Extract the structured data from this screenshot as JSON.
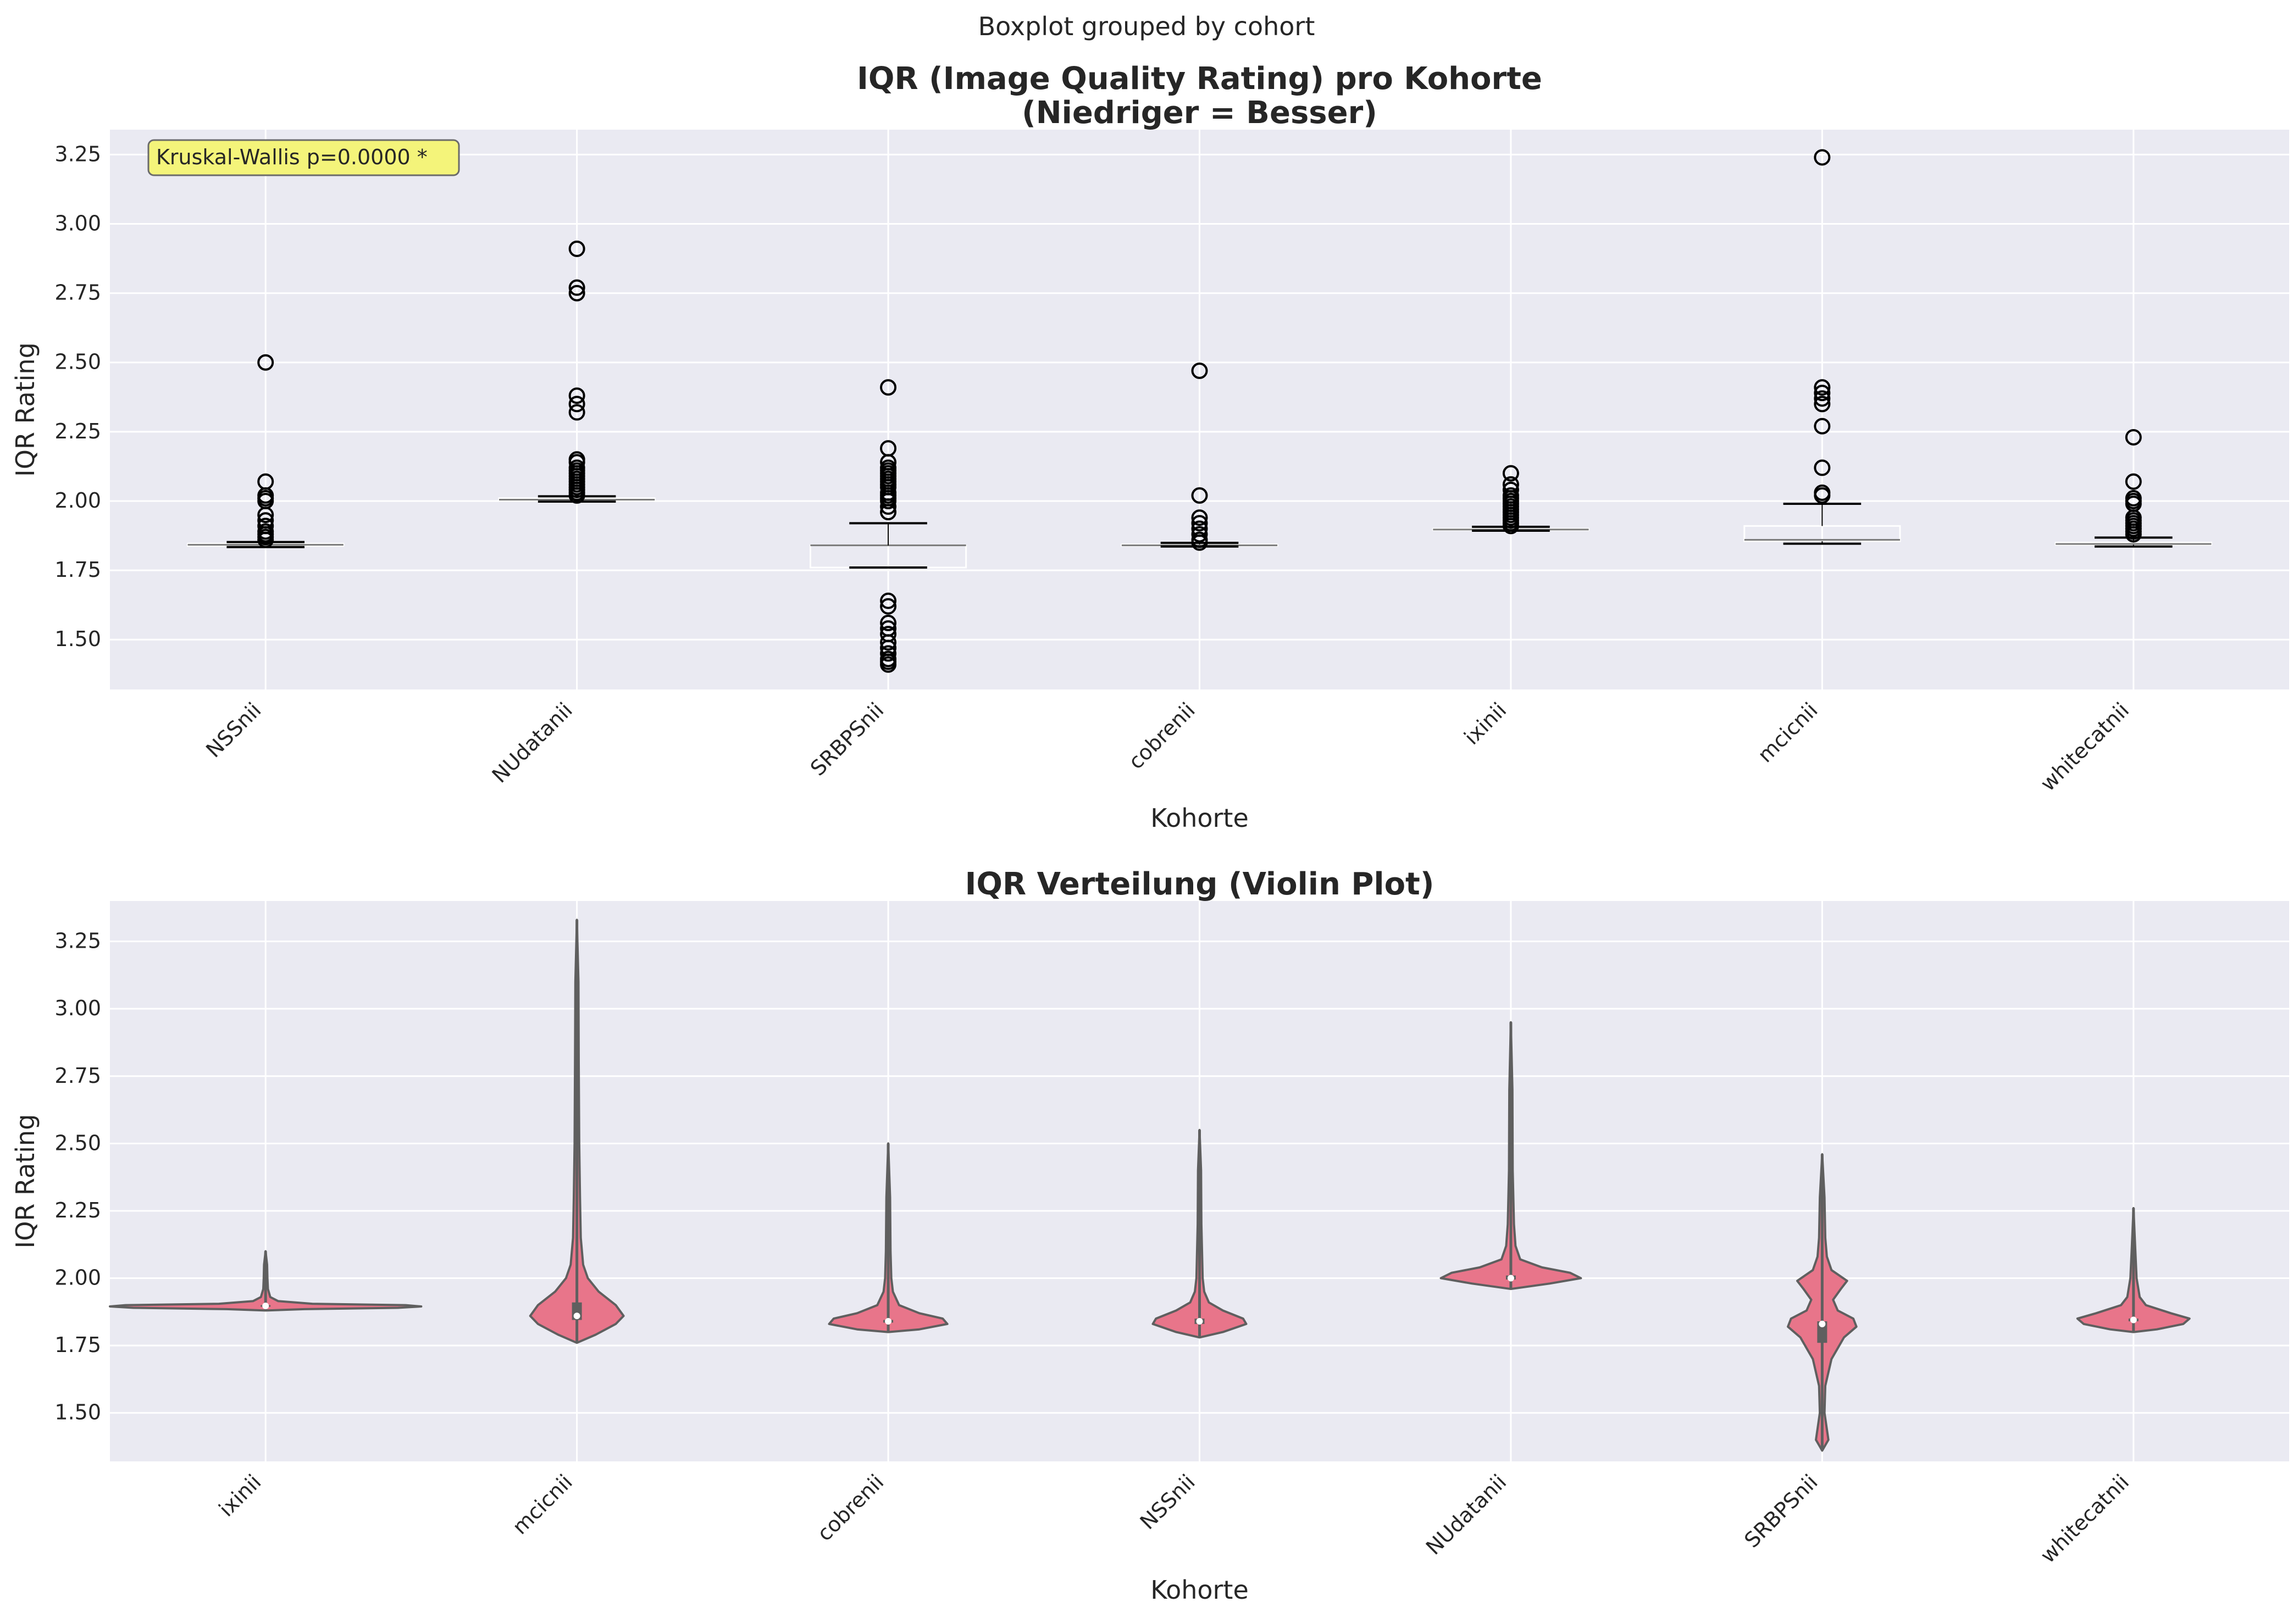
{
  "figure": {
    "suptitle": "Boxplot grouped by cohort"
  },
  "colors": {
    "panel_bg": "#eaeaf2",
    "grid": "#ffffff",
    "text": "#262626",
    "violin_fill": "#e8758a",
    "violin_edge": "#5f5f5f",
    "box_edge": "#000000",
    "annotation_bg": "#f4f47a"
  },
  "chart_data": [
    {
      "type": "box",
      "title": "IQR (Image Quality Rating) pro Kohorte\n(Niedriger = Besser)",
      "xlabel": "Kohorte",
      "ylabel": "IQR Rating",
      "ylim": [
        1.32,
        3.34
      ],
      "yticks": [
        1.5,
        1.75,
        2.0,
        2.25,
        2.5,
        2.75,
        3.0,
        3.25
      ],
      "grid": true,
      "annotation": "Kruskal-Wallis p=0.0000 *",
      "categories": [
        "NSSnii",
        "NUdatanii",
        "SRBPSnii",
        "cobrenii",
        "ixinii",
        "mcicnii",
        "whitecatnii"
      ],
      "boxes": [
        {
          "q1": 1.838,
          "median": 1.842,
          "q3": 1.846,
          "whislo": 1.834,
          "whishi": 1.852,
          "fliers": [
            1.86,
            1.87,
            1.88,
            1.89,
            1.91,
            1.93,
            1.95,
            2.0,
            2.01,
            2.02,
            2.07,
            2.5
          ]
        },
        {
          "q1": 2.0,
          "median": 2.005,
          "q3": 2.01,
          "whislo": 1.998,
          "whishi": 2.017,
          "fliers": [
            2.02,
            2.03,
            2.04,
            2.05,
            2.06,
            2.07,
            2.08,
            2.09,
            2.1,
            2.11,
            2.12,
            2.14,
            2.15,
            2.32,
            2.35,
            2.38,
            2.75,
            2.77,
            2.91
          ]
        },
        {
          "q1": 1.76,
          "median": 1.84,
          "q3": 1.84,
          "whislo": 1.76,
          "whishi": 1.92,
          "fliers": [
            1.41,
            1.42,
            1.43,
            1.45,
            1.47,
            1.49,
            1.52,
            1.54,
            1.56,
            1.62,
            1.64,
            1.96,
            1.98,
            2.0,
            2.01,
            2.02,
            2.03,
            2.05,
            2.06,
            2.07,
            2.08,
            2.09,
            2.1,
            2.11,
            2.12,
            2.14,
            2.19,
            2.41
          ]
        },
        {
          "q1": 1.838,
          "median": 1.84,
          "q3": 1.843,
          "whislo": 1.836,
          "whishi": 1.849,
          "fliers": [
            1.85,
            1.86,
            1.88,
            1.9,
            1.92,
            1.94,
            2.02,
            2.47
          ]
        },
        {
          "q1": 1.895,
          "median": 1.897,
          "q3": 1.9,
          "whislo": 1.893,
          "whishi": 1.907,
          "fliers": [
            1.91,
            1.92,
            1.93,
            1.94,
            1.95,
            1.96,
            1.97,
            1.98,
            1.99,
            2.0,
            2.01,
            2.02,
            2.04,
            2.06,
            2.1
          ]
        },
        {
          "q1": 1.855,
          "median": 1.86,
          "q3": 1.91,
          "whislo": 1.846,
          "whishi": 1.99,
          "fliers": [
            2.02,
            2.03,
            2.12,
            2.27,
            2.35,
            2.37,
            2.39,
            2.41,
            3.24
          ]
        },
        {
          "q1": 1.842,
          "median": 1.845,
          "q3": 1.85,
          "whislo": 1.836,
          "whishi": 1.868,
          "fliers": [
            1.88,
            1.89,
            1.9,
            1.91,
            1.92,
            1.93,
            1.94,
            1.99,
            2.0,
            2.01,
            2.07,
            2.23
          ]
        }
      ]
    },
    {
      "type": "violin",
      "title": "IQR Verteilung (Violin Plot)",
      "xlabel": "Kohorte",
      "ylabel": "IQR Rating",
      "ylim": [
        1.32,
        3.4
      ],
      "yticks": [
        1.5,
        1.75,
        2.0,
        2.25,
        2.5,
        2.75,
        3.0,
        3.25
      ],
      "grid": true,
      "categories": [
        "ixinii",
        "mcicnii",
        "cobrenii",
        "NSSnii",
        "NUdatanii",
        "SRBPSnii",
        "whitecatnii"
      ],
      "violins": [
        {
          "min": 1.88,
          "max": 2.1,
          "q1": 1.894,
          "median": 1.897,
          "q3": 1.9,
          "density": [
            [
              1.88,
              0.0
            ],
            [
              1.885,
              0.25
            ],
            [
              1.89,
              0.85
            ],
            [
              1.895,
              1.0
            ],
            [
              1.9,
              0.9
            ],
            [
              1.905,
              0.3
            ],
            [
              1.915,
              0.08
            ],
            [
              1.93,
              0.03
            ],
            [
              1.96,
              0.015
            ],
            [
              2.0,
              0.012
            ],
            [
              2.05,
              0.01
            ],
            [
              2.1,
              0.0
            ]
          ]
        },
        {
          "min": 1.76,
          "max": 3.33,
          "q1": 1.845,
          "median": 1.86,
          "q3": 1.91,
          "density": [
            [
              1.76,
              0.0
            ],
            [
              1.79,
              0.12
            ],
            [
              1.83,
              0.25
            ],
            [
              1.86,
              0.3
            ],
            [
              1.9,
              0.25
            ],
            [
              1.95,
              0.14
            ],
            [
              2.0,
              0.07
            ],
            [
              2.05,
              0.04
            ],
            [
              2.15,
              0.025
            ],
            [
              2.3,
              0.02
            ],
            [
              2.5,
              0.015
            ],
            [
              2.8,
              0.012
            ],
            [
              3.1,
              0.01
            ],
            [
              3.33,
              0.0
            ]
          ]
        },
        {
          "min": 1.8,
          "max": 2.5,
          "q1": 1.835,
          "median": 1.84,
          "q3": 1.845,
          "density": [
            [
              1.8,
              0.0
            ],
            [
              1.81,
              0.2
            ],
            [
              1.83,
              0.38
            ],
            [
              1.85,
              0.35
            ],
            [
              1.87,
              0.2
            ],
            [
              1.9,
              0.07
            ],
            [
              1.95,
              0.03
            ],
            [
              2.0,
              0.02
            ],
            [
              2.1,
              0.015
            ],
            [
              2.3,
              0.012
            ],
            [
              2.5,
              0.0
            ]
          ]
        },
        {
          "min": 1.78,
          "max": 2.55,
          "q1": 1.83,
          "median": 1.84,
          "q3": 1.85,
          "density": [
            [
              1.78,
              0.0
            ],
            [
              1.8,
              0.15
            ],
            [
              1.83,
              0.3
            ],
            [
              1.85,
              0.28
            ],
            [
              1.88,
              0.15
            ],
            [
              1.91,
              0.06
            ],
            [
              1.95,
              0.03
            ],
            [
              2.0,
              0.02
            ],
            [
              2.2,
              0.012
            ],
            [
              2.4,
              0.01
            ],
            [
              2.55,
              0.0
            ]
          ]
        },
        {
          "min": 1.96,
          "max": 2.95,
          "q1": 1.995,
          "median": 2.0,
          "q3": 2.01,
          "density": [
            [
              1.96,
              0.0
            ],
            [
              1.98,
              0.25
            ],
            [
              2.0,
              0.45
            ],
            [
              2.02,
              0.38
            ],
            [
              2.04,
              0.2
            ],
            [
              2.07,
              0.06
            ],
            [
              2.12,
              0.03
            ],
            [
              2.2,
              0.02
            ],
            [
              2.4,
              0.012
            ],
            [
              2.7,
              0.01
            ],
            [
              2.95,
              0.0
            ]
          ]
        },
        {
          "min": 1.36,
          "max": 2.46,
          "q1": 1.76,
          "median": 1.83,
          "q3": 1.84,
          "density": [
            [
              1.36,
              0.0
            ],
            [
              1.4,
              0.04
            ],
            [
              1.5,
              0.015
            ],
            [
              1.6,
              0.02
            ],
            [
              1.7,
              0.06
            ],
            [
              1.74,
              0.1
            ],
            [
              1.78,
              0.14
            ],
            [
              1.82,
              0.22
            ],
            [
              1.85,
              0.2
            ],
            [
              1.88,
              0.1
            ],
            [
              1.92,
              0.07
            ],
            [
              1.96,
              0.12
            ],
            [
              1.99,
              0.16
            ],
            [
              2.03,
              0.06
            ],
            [
              2.08,
              0.03
            ],
            [
              2.15,
              0.02
            ],
            [
              2.3,
              0.015
            ],
            [
              2.46,
              0.0
            ]
          ]
        },
        {
          "min": 1.8,
          "max": 2.26,
          "q1": 1.84,
          "median": 1.845,
          "q3": 1.85,
          "density": [
            [
              1.8,
              0.0
            ],
            [
              1.81,
              0.15
            ],
            [
              1.83,
              0.32
            ],
            [
              1.85,
              0.36
            ],
            [
              1.87,
              0.24
            ],
            [
              1.9,
              0.08
            ],
            [
              1.93,
              0.04
            ],
            [
              2.0,
              0.02
            ],
            [
              2.1,
              0.012
            ],
            [
              2.26,
              0.0
            ]
          ]
        }
      ]
    }
  ]
}
